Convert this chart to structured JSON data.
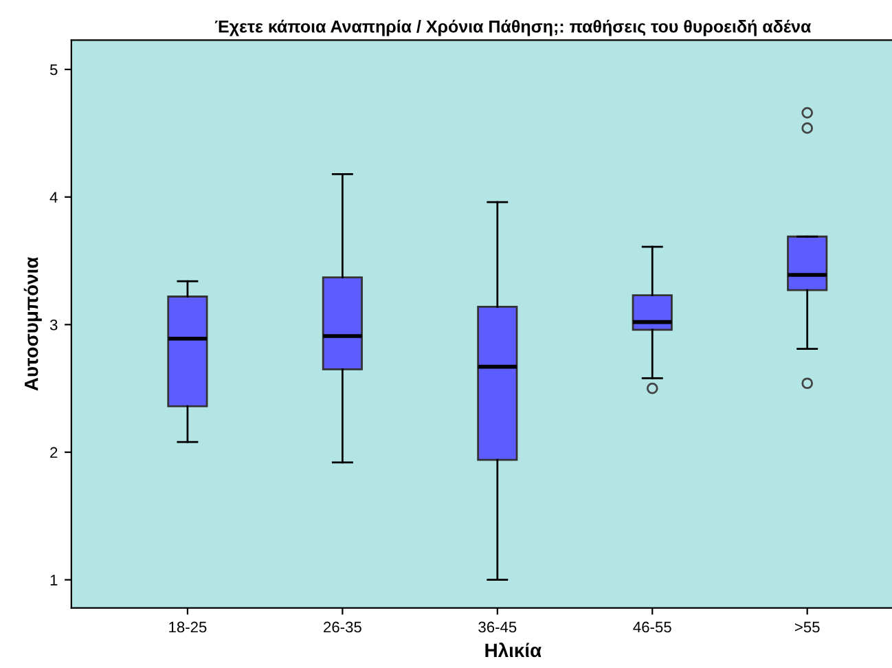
{
  "chart_data": {
    "type": "box",
    "title": "Έχετε κάποια Αναπηρία / Χρόνια Πάθηση;: παθήσεις του θυροειδή αδένα",
    "xlabel": "Ηλικία",
    "ylabel": "Αυτοσυμπόνια",
    "categories": [
      "18-25",
      "26-35",
      "36-45",
      "46-55",
      ">55"
    ],
    "color": "#5d5dff",
    "boxes": [
      {
        "low": 2.08,
        "q1": 2.36,
        "median": 2.89,
        "q3": 3.22,
        "high": 3.34
      },
      {
        "low": 1.92,
        "q1": 2.65,
        "median": 2.91,
        "q3": 3.37,
        "high": 4.18
      },
      {
        "low": 1.0,
        "q1": 1.94,
        "median": 2.67,
        "q3": 3.14,
        "high": 3.96
      },
      {
        "low": 2.58,
        "q1": 2.96,
        "median": 3.02,
        "q3": 3.23,
        "high": 3.61,
        "outliers": [
          2.5
        ]
      },
      {
        "low": 2.81,
        "q1": 3.27,
        "median": 3.39,
        "q3": 3.69,
        "high": 3.69,
        "outliers": [
          4.66,
          4.54,
          2.54
        ]
      }
    ],
    "ylim": [
      0.78,
      5.23
    ],
    "yticks": [
      1,
      2,
      3,
      4,
      5
    ],
    "grid": false
  }
}
